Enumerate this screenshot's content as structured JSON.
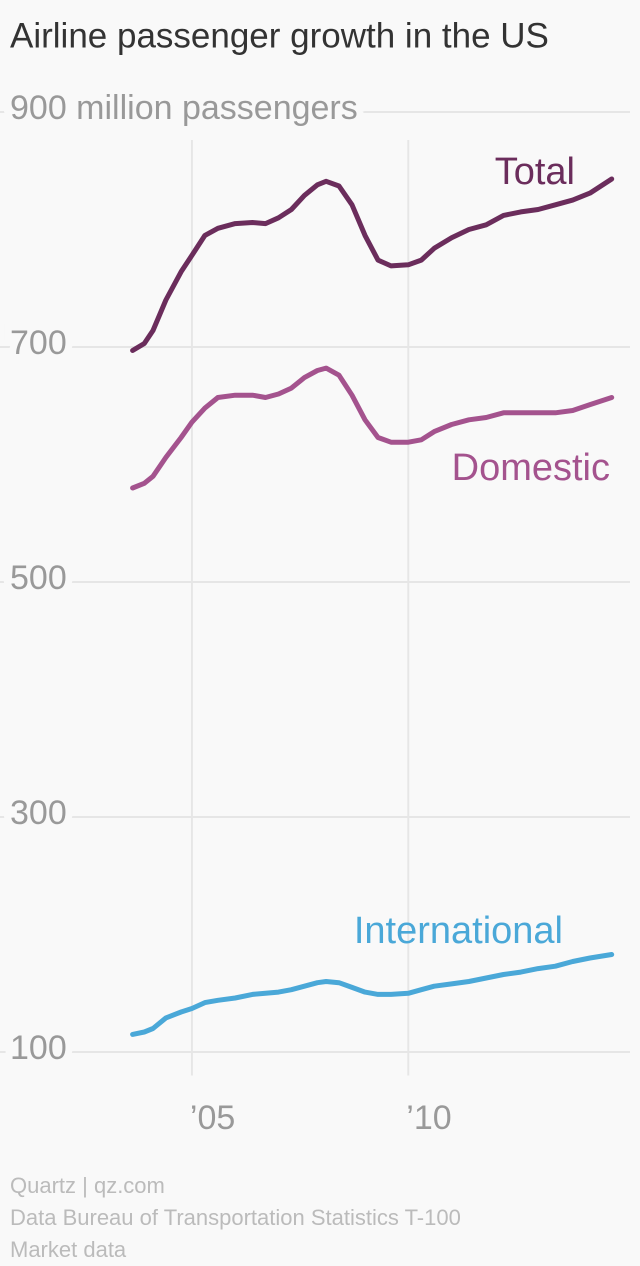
{
  "chart_data": {
    "type": "line",
    "title": "Airline passenger growth in the US",
    "source": "Quartz | qz.com",
    "note": "Data Bureau of Transportation Statistics T-100 Market data",
    "x": [
      2003.63,
      2003.9,
      2004.1,
      2004.4,
      2004.75,
      2005.0,
      2005.3,
      2005.6,
      2006.0,
      2006.4,
      2006.7,
      2007.0,
      2007.3,
      2007.6,
      2007.9,
      2008.1,
      2008.4,
      2008.7,
      2009.0,
      2009.3,
      2009.6,
      2010.0,
      2010.3,
      2010.6,
      2011.0,
      2011.4,
      2011.8,
      2012.2,
      2012.6,
      2013.0,
      2013.4,
      2013.8,
      2014.2,
      2014.7
    ],
    "series": [
      {
        "name": "Total",
        "color": "#6b2d5c",
        "values": [
          697,
          703,
          714,
          740,
          764,
          778,
          795,
          801,
          805,
          806,
          805,
          810,
          817,
          829,
          838,
          841,
          837,
          821,
          795,
          774,
          769,
          770,
          774,
          784,
          793,
          800,
          804,
          812,
          815,
          817,
          821,
          825,
          831,
          843
        ]
      },
      {
        "name": "Domestic",
        "color": "#a4538e",
        "values": [
          580,
          584,
          590,
          606,
          623,
          636,
          648,
          657,
          659,
          659,
          657,
          660,
          665,
          674,
          680,
          682,
          676,
          659,
          638,
          623,
          619,
          619,
          621,
          628,
          634,
          638,
          640,
          644,
          644,
          644,
          644,
          646,
          651,
          657
        ]
      },
      {
        "name": "International",
        "color": "#4aa8d8",
        "values": [
          115,
          117,
          120,
          129,
          134,
          137,
          142,
          144,
          146,
          149,
          150,
          151,
          153,
          156,
          159,
          160,
          159,
          155,
          151,
          149,
          149,
          150,
          153,
          156,
          158,
          160,
          163,
          166,
          168,
          171,
          173,
          177,
          180,
          183
        ]
      }
    ],
    "xlim": [
      2003.5,
      2014.8
    ],
    "xticks": [
      {
        "value": 2005,
        "label": "’05"
      },
      {
        "value": 2010,
        "label": "’10"
      }
    ],
    "ylim": [
      80,
      900
    ],
    "yticks": [
      100,
      300,
      500,
      700,
      {
        "value": 900,
        "label": "900 million passengers"
      }
    ],
    "grid": true
  }
}
